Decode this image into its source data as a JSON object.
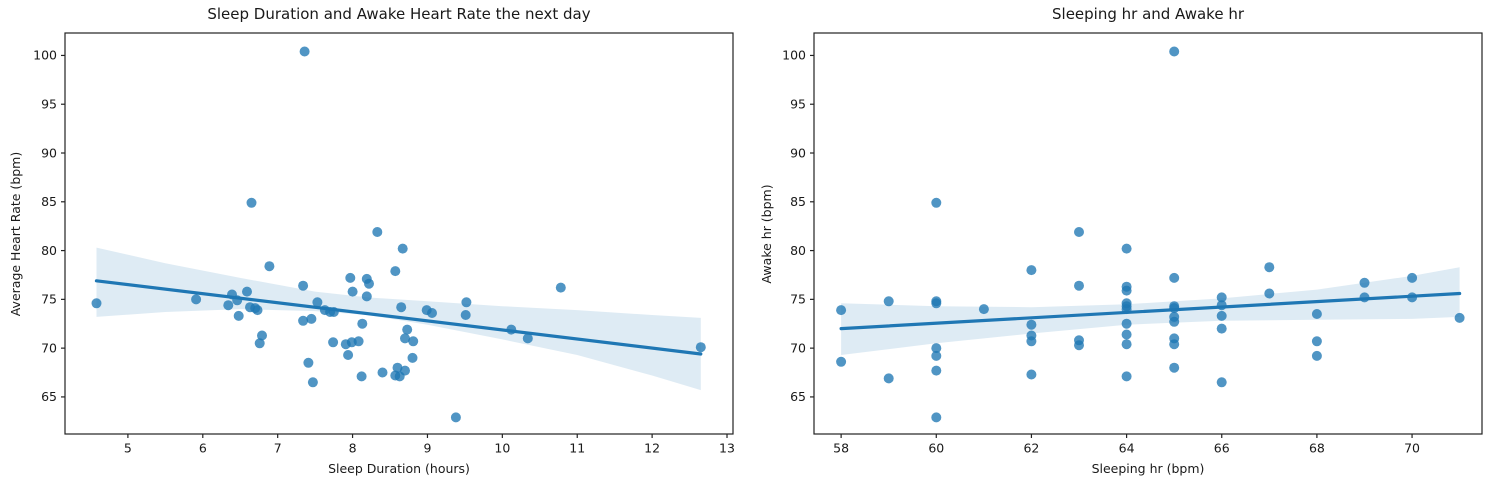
{
  "figure": {
    "background": "#ffffff",
    "accent_color": "#1f77b4",
    "point_color": "#1f77b4",
    "point_opacity": 0.78,
    "band_color": "#1f77b4",
    "band_opacity": 0.15,
    "text_color": "#1a1a1a",
    "spine_color": "#222222"
  },
  "chart_data": [
    {
      "type": "scatter",
      "title": "Sleep Duration and Awake Heart Rate the next day",
      "xlabel": "Sleep Duration (hours)",
      "ylabel": "Average Heart Rate (bpm)",
      "xlim": [
        4.16,
        13.08
      ],
      "ylim": [
        61.2,
        102.3
      ],
      "xticks": [
        5,
        6,
        7,
        8,
        9,
        10,
        11,
        12,
        13
      ],
      "yticks": [
        65,
        70,
        75,
        80,
        85,
        90,
        95,
        100
      ],
      "grid": false,
      "legend": null,
      "points": [
        [
          4.58,
          74.6
        ],
        [
          5.91,
          75.0
        ],
        [
          6.34,
          74.4
        ],
        [
          6.39,
          75.5
        ],
        [
          6.46,
          74.9
        ],
        [
          6.48,
          73.3
        ],
        [
          6.59,
          75.8
        ],
        [
          6.63,
          74.2
        ],
        [
          6.65,
          84.9
        ],
        [
          6.7,
          74.1
        ],
        [
          6.73,
          73.9
        ],
        [
          6.76,
          70.5
        ],
        [
          6.79,
          71.3
        ],
        [
          6.89,
          78.4
        ],
        [
          7.34,
          76.4
        ],
        [
          7.34,
          72.8
        ],
        [
          7.36,
          100.4
        ],
        [
          7.41,
          68.5
        ],
        [
          7.45,
          73.0
        ],
        [
          7.47,
          66.5
        ],
        [
          7.53,
          74.7
        ],
        [
          7.63,
          73.9
        ],
        [
          7.7,
          73.7
        ],
        [
          7.74,
          70.6
        ],
        [
          7.75,
          73.7
        ],
        [
          7.91,
          70.4
        ],
        [
          7.94,
          69.3
        ],
        [
          7.97,
          77.2
        ],
        [
          7.99,
          70.6
        ],
        [
          8.0,
          75.8
        ],
        [
          8.08,
          70.7
        ],
        [
          8.12,
          67.1
        ],
        [
          8.13,
          72.5
        ],
        [
          8.19,
          77.1
        ],
        [
          8.19,
          75.3
        ],
        [
          8.22,
          76.6
        ],
        [
          8.33,
          81.9
        ],
        [
          8.4,
          67.5
        ],
        [
          8.57,
          77.9
        ],
        [
          8.57,
          67.2
        ],
        [
          8.6,
          68.0
        ],
        [
          8.63,
          67.1
        ],
        [
          8.65,
          74.2
        ],
        [
          8.67,
          80.2
        ],
        [
          8.7,
          67.7
        ],
        [
          8.7,
          71.0
        ],
        [
          8.73,
          71.9
        ],
        [
          8.8,
          69.0
        ],
        [
          8.81,
          70.7
        ],
        [
          8.99,
          73.9
        ],
        [
          9.06,
          73.6
        ],
        [
          9.38,
          62.9
        ],
        [
          9.51,
          73.4
        ],
        [
          9.52,
          74.7
        ],
        [
          10.12,
          71.9
        ],
        [
          10.34,
          71.0
        ],
        [
          10.78,
          76.2
        ],
        [
          12.65,
          70.1
        ]
      ],
      "regression_line": {
        "x": [
          4.58,
          12.65
        ],
        "y": [
          76.9,
          69.4
        ]
      },
      "ci_upper": [
        [
          4.58,
          80.3
        ],
        [
          5.5,
          78.7
        ],
        [
          6.5,
          77.2
        ],
        [
          7.5,
          75.8
        ],
        [
          8.2,
          75.2
        ],
        [
          9.0,
          74.8
        ],
        [
          10.0,
          74.3
        ],
        [
          11.0,
          73.9
        ],
        [
          12.0,
          73.4
        ],
        [
          12.65,
          73.1
        ]
      ],
      "ci_lower": [
        [
          4.58,
          73.2
        ],
        [
          5.5,
          73.7
        ],
        [
          6.5,
          74.0
        ],
        [
          7.5,
          73.8
        ],
        [
          8.2,
          73.4
        ],
        [
          9.0,
          72.4
        ],
        [
          10.0,
          70.9
        ],
        [
          11.0,
          69.3
        ],
        [
          12.0,
          67.2
        ],
        [
          12.65,
          65.7
        ]
      ]
    },
    {
      "type": "scatter",
      "title": "Sleeping hr and Awake hr",
      "xlabel": "Sleeping hr (bpm)",
      "ylabel": "Awake hr (bpm)",
      "xlim": [
        57.43,
        71.47
      ],
      "ylim": [
        61.2,
        102.3
      ],
      "xticks": [
        58,
        60,
        62,
        64,
        66,
        68,
        70
      ],
      "yticks": [
        65,
        70,
        75,
        80,
        85,
        90,
        95,
        100
      ],
      "grid": false,
      "legend": null,
      "points": [
        [
          58,
          73.9
        ],
        [
          58,
          68.6
        ],
        [
          59,
          74.8
        ],
        [
          59,
          66.9
        ],
        [
          60,
          84.9
        ],
        [
          60,
          74.8
        ],
        [
          60,
          74.6
        ],
        [
          60,
          70.0
        ],
        [
          60,
          69.2
        ],
        [
          60,
          67.7
        ],
        [
          60,
          62.9
        ],
        [
          61,
          74.0
        ],
        [
          62,
          78.0
        ],
        [
          62,
          72.4
        ],
        [
          62,
          71.3
        ],
        [
          62,
          70.7
        ],
        [
          62,
          67.3
        ],
        [
          63,
          81.9
        ],
        [
          63,
          76.4
        ],
        [
          63,
          70.8
        ],
        [
          63,
          70.3
        ],
        [
          64,
          80.2
        ],
        [
          64,
          76.3
        ],
        [
          64,
          75.9
        ],
        [
          64,
          74.6
        ],
        [
          64,
          74.3
        ],
        [
          64,
          74.0
        ],
        [
          64,
          72.5
        ],
        [
          64,
          71.4
        ],
        [
          64,
          70.4
        ],
        [
          64,
          67.1
        ],
        [
          65,
          100.4
        ],
        [
          65,
          77.2
        ],
        [
          65,
          74.3
        ],
        [
          65,
          74.1
        ],
        [
          65,
          73.2
        ],
        [
          65,
          72.7
        ],
        [
          65,
          71.0
        ],
        [
          65,
          70.4
        ],
        [
          65,
          68.0
        ],
        [
          66,
          75.2
        ],
        [
          66,
          74.4
        ],
        [
          66,
          73.3
        ],
        [
          66,
          72.0
        ],
        [
          66,
          66.5
        ],
        [
          67,
          78.3
        ],
        [
          67,
          75.6
        ],
        [
          68,
          73.5
        ],
        [
          68,
          70.7
        ],
        [
          68,
          69.2
        ],
        [
          69,
          76.7
        ],
        [
          69,
          75.2
        ],
        [
          70,
          77.2
        ],
        [
          70,
          75.2
        ],
        [
          71,
          73.1
        ]
      ],
      "regression_line": {
        "x": [
          58,
          71
        ],
        "y": [
          72.0,
          75.6
        ]
      },
      "ci_upper": [
        [
          58,
          74.6
        ],
        [
          60,
          74.3
        ],
        [
          62,
          74.2
        ],
        [
          64,
          74.5
        ],
        [
          66,
          75.1
        ],
        [
          68,
          76.0
        ],
        [
          70,
          77.4
        ],
        [
          71,
          78.3
        ]
      ],
      "ci_lower": [
        [
          58,
          69.3
        ],
        [
          60,
          70.5
        ],
        [
          62,
          71.5
        ],
        [
          64,
          72.4
        ],
        [
          66,
          72.8
        ],
        [
          68,
          72.9
        ],
        [
          70,
          73.0
        ],
        [
          71,
          73.2
        ]
      ]
    }
  ]
}
